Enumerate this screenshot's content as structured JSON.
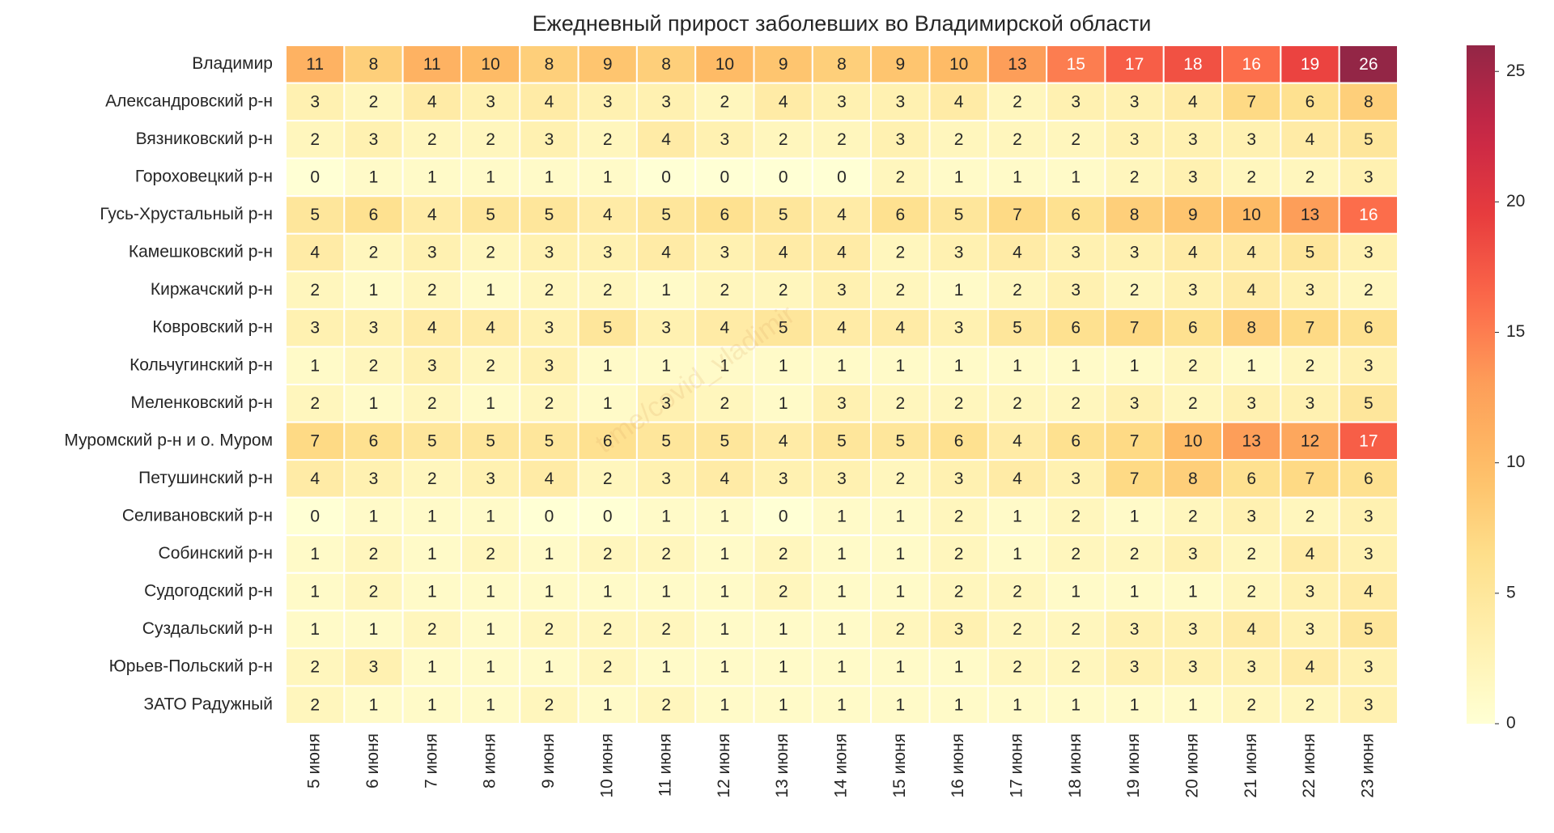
{
  "chart_data": {
    "type": "heatmap",
    "title": "Ежедневный прирост заболевших во Владимирской области",
    "watermark": "t.me/covid_vladimir",
    "x": [
      "5 июня",
      "6 июня",
      "7 июня",
      "8 июня",
      "9 июня",
      "10 июня",
      "11 июня",
      "12 июня",
      "13 июня",
      "14 июня",
      "15 июня",
      "16 июня",
      "17 июня",
      "18 июня",
      "19 июня",
      "20 июня",
      "21 июня",
      "22 июня",
      "23 июня"
    ],
    "y": [
      "Владимир",
      "Александровский р-н",
      "Вязниковский р-н",
      "Гороховецкий р-н",
      "Гусь-Хрустальный р-н",
      "Камешковский р-н",
      "Киржачский р-н",
      "Ковровский р-н",
      "Кольчугинский р-н",
      "Меленковский р-н",
      "Муромский р-н и о. Муром",
      "Петушинский р-н",
      "Селивановский р-н",
      "Собинский р-н",
      "Судогодский р-н",
      "Суздальский р-н",
      "Юрьев-Польский р-н",
      "ЗАТО Радужный"
    ],
    "values": [
      [
        11,
        8,
        11,
        10,
        8,
        9,
        8,
        10,
        9,
        8,
        9,
        10,
        13,
        15,
        17,
        18,
        16,
        19,
        26
      ],
      [
        3,
        2,
        4,
        3,
        4,
        3,
        3,
        2,
        4,
        3,
        3,
        4,
        2,
        3,
        3,
        4,
        7,
        6,
        8
      ],
      [
        2,
        3,
        2,
        2,
        3,
        2,
        4,
        3,
        2,
        2,
        3,
        2,
        2,
        2,
        3,
        3,
        3,
        4,
        5
      ],
      [
        0,
        1,
        1,
        1,
        1,
        1,
        0,
        0,
        0,
        0,
        2,
        1,
        1,
        1,
        2,
        3,
        2,
        2,
        3
      ],
      [
        5,
        6,
        4,
        5,
        5,
        4,
        5,
        6,
        5,
        4,
        6,
        5,
        7,
        6,
        8,
        9,
        10,
        13,
        16
      ],
      [
        4,
        2,
        3,
        2,
        3,
        3,
        4,
        3,
        4,
        4,
        2,
        3,
        4,
        3,
        3,
        4,
        4,
        5,
        3
      ],
      [
        2,
        1,
        2,
        1,
        2,
        2,
        1,
        2,
        2,
        3,
        2,
        1,
        2,
        3,
        2,
        3,
        4,
        3,
        2
      ],
      [
        3,
        3,
        4,
        4,
        3,
        5,
        3,
        4,
        5,
        4,
        4,
        3,
        5,
        6,
        7,
        6,
        8,
        7,
        6
      ],
      [
        1,
        2,
        3,
        2,
        3,
        1,
        1,
        1,
        1,
        1,
        1,
        1,
        1,
        1,
        1,
        2,
        1,
        2,
        3
      ],
      [
        2,
        1,
        2,
        1,
        2,
        1,
        3,
        2,
        1,
        3,
        2,
        2,
        2,
        2,
        3,
        2,
        3,
        3,
        5
      ],
      [
        7,
        6,
        5,
        5,
        5,
        6,
        5,
        5,
        4,
        5,
        5,
        6,
        4,
        6,
        7,
        10,
        13,
        12,
        17
      ],
      [
        4,
        3,
        2,
        3,
        4,
        2,
        3,
        4,
        3,
        3,
        2,
        3,
        4,
        3,
        7,
        8,
        6,
        7,
        6
      ],
      [
        0,
        1,
        1,
        1,
        0,
        0,
        1,
        1,
        0,
        1,
        1,
        2,
        1,
        2,
        1,
        2,
        3,
        2,
        3
      ],
      [
        1,
        2,
        1,
        2,
        1,
        2,
        2,
        1,
        2,
        1,
        1,
        2,
        1,
        2,
        2,
        3,
        2,
        4,
        3
      ],
      [
        1,
        2,
        1,
        1,
        1,
        1,
        1,
        1,
        2,
        1,
        1,
        2,
        2,
        1,
        1,
        1,
        2,
        3,
        4
      ],
      [
        1,
        1,
        2,
        1,
        2,
        2,
        2,
        1,
        1,
        1,
        2,
        3,
        2,
        2,
        3,
        3,
        4,
        3,
        5
      ],
      [
        2,
        3,
        1,
        1,
        1,
        2,
        1,
        1,
        1,
        1,
        1,
        1,
        2,
        2,
        3,
        3,
        3,
        4,
        3
      ],
      [
        2,
        1,
        1,
        1,
        2,
        1,
        2,
        1,
        1,
        1,
        1,
        1,
        1,
        1,
        1,
        1,
        2,
        2,
        3
      ]
    ],
    "colormap": [
      "#ffffcc",
      "#ffeda0",
      "#fed976",
      "#feb24c",
      "#fd8d3c",
      "#fc4e2a",
      "#e31a1c",
      "#bd0026",
      "#800026"
    ],
    "clim": [
      0,
      26
    ],
    "cticks": [
      0,
      5,
      10,
      15,
      20,
      25
    ]
  }
}
